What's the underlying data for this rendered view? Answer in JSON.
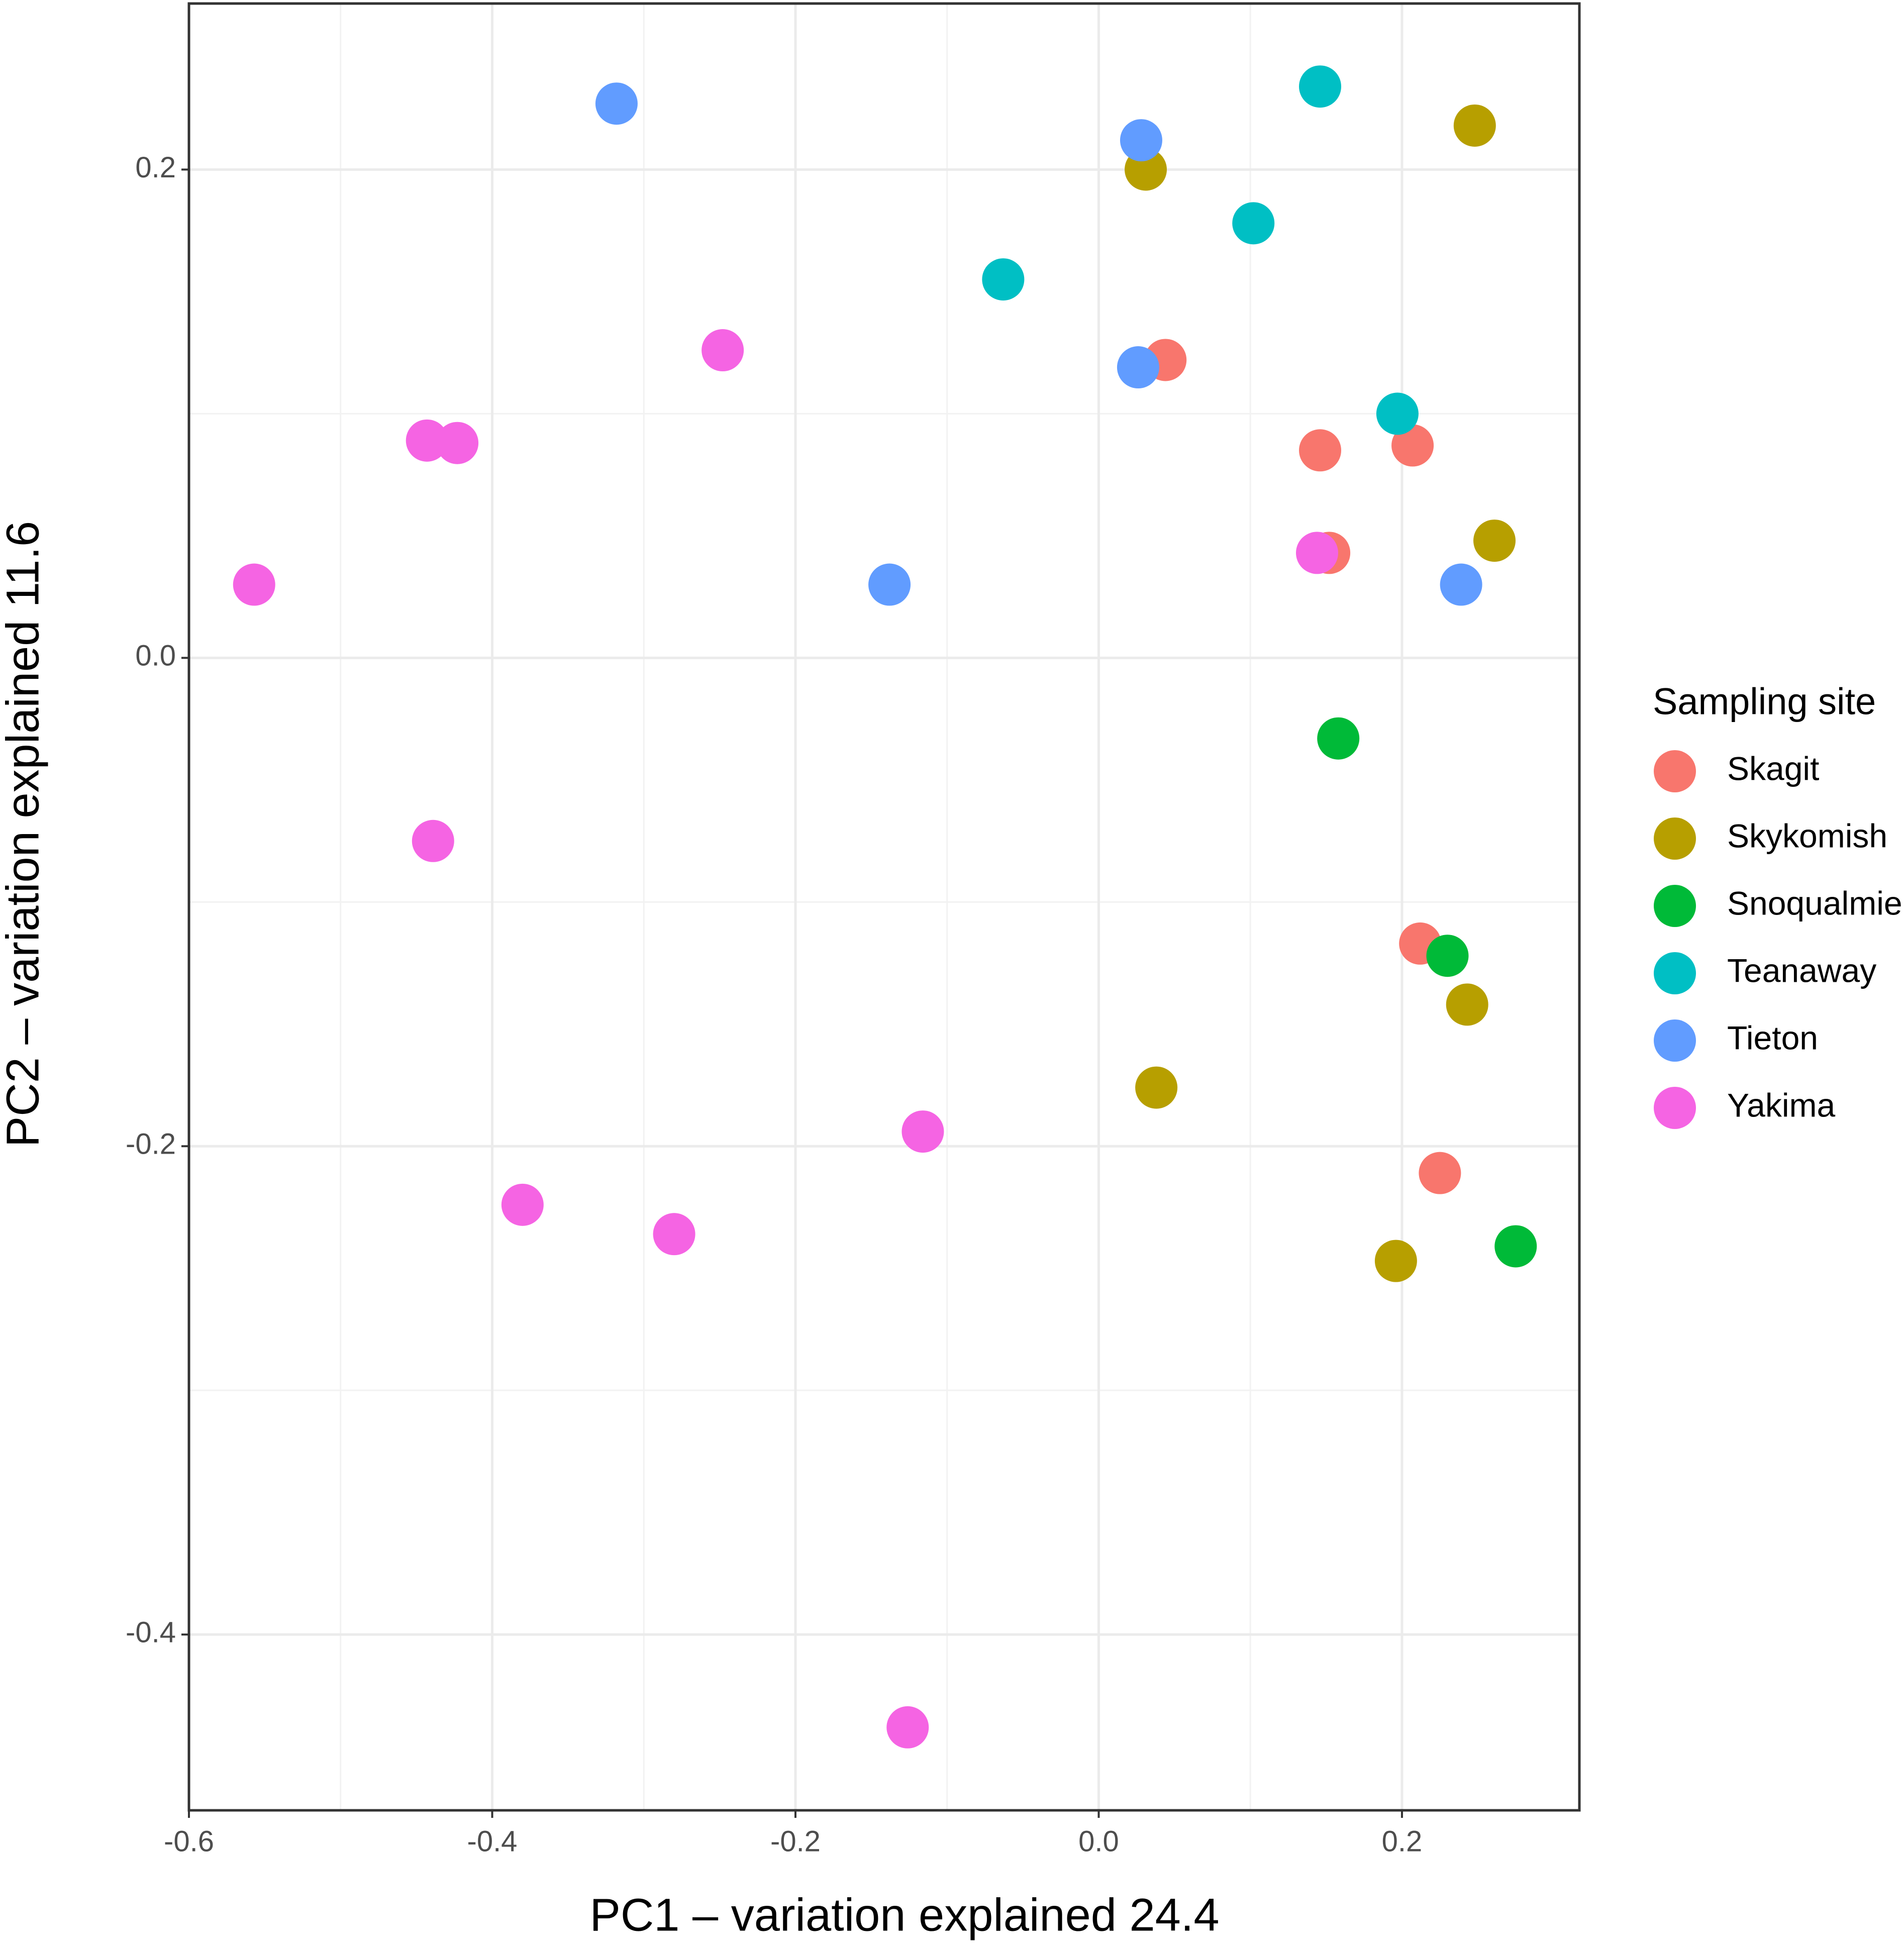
{
  "chart_data": {
    "type": "scatter",
    "x_label": "PC1 – variation explained 24.4",
    "y_label": "PC2 – variation explained 11.6",
    "legend_title": "Sampling site",
    "legend": "right",
    "grid": true,
    "xlim": [
      -0.6,
      0.317
    ],
    "ylim": [
      -0.472,
      0.268
    ],
    "xticks": [
      -0.6,
      -0.4,
      -0.2,
      {
        "value": 0,
        "label": "0.0"
      },
      0.2
    ],
    "yticks": [
      -0.4,
      -0.2,
      {
        "value": 0,
        "label": "0.0"
      },
      0.2
    ],
    "series": [
      {
        "name": "Skagit",
        "color": "#F8766D",
        "x": [
          0.044,
          0.146,
          0.207,
          0.152,
          0.212,
          0.225
        ],
        "values": [
          0.122,
          0.085,
          0.087,
          0.043,
          -0.117,
          -0.211
        ]
      },
      {
        "name": "Skykomish",
        "color": "#B79F00",
        "x": [
          0.248,
          0.031,
          0.261,
          0.243,
          0.038,
          0.196
        ],
        "values": [
          0.218,
          0.2,
          0.048,
          -0.142,
          -0.176,
          -0.247
        ]
      },
      {
        "name": "Snoqualmie",
        "color": "#00BA38",
        "x": [
          0.158,
          0.23,
          0.275
        ],
        "values": [
          -0.033,
          -0.122,
          -0.241
        ]
      },
      {
        "name": "Teanaway",
        "color": "#00BFC4",
        "x": [
          0.146,
          0.102,
          -0.063,
          0.197
        ],
        "values": [
          0.234,
          0.178,
          0.155,
          0.1
        ]
      },
      {
        "name": "Tieton",
        "color": "#619CFF",
        "x": [
          -0.318,
          0.028,
          0.026,
          -0.138,
          0.239
        ],
        "values": [
          0.227,
          0.212,
          0.119,
          0.03,
          0.03
        ]
      },
      {
        "name": "Yakima",
        "color": "#F564E3",
        "x": [
          -0.248,
          -0.443,
          -0.423,
          -0.557,
          0.144,
          -0.439,
          -0.116,
          -0.38,
          -0.28,
          -0.126
        ],
        "values": [
          0.126,
          0.089,
          0.088,
          0.03,
          0.043,
          -0.075,
          -0.194,
          -0.224,
          -0.236,
          -0.438
        ]
      }
    ]
  }
}
